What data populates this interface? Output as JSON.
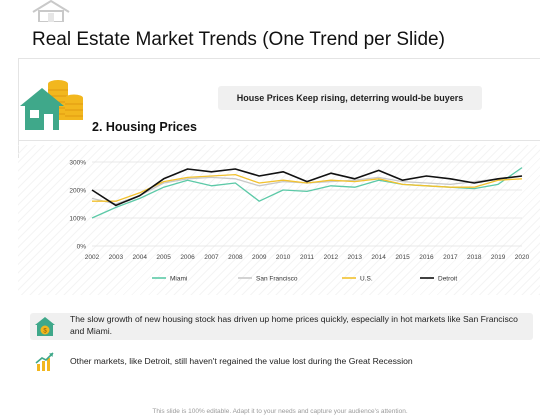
{
  "title": "Real Estate Market Trends (One Trend per Slide)",
  "section_label": "2. Housing Prices",
  "callout": "House Prices Keep rising, deterring would-be buyers",
  "note1": "The slow growth of new housing stock has driven up home prices quickly, especially in hot markets like San Francisco and Miami.",
  "note2": "Other markets, like Detroit, still haven't regained the value lost during the Great Recession",
  "footer": "This slide is 100% editable. Adapt it to your needs and capture your audience's attention.",
  "icons": {
    "top": "house-outline-icon",
    "section": "house-with-coins-icon",
    "note1": "house-coin-icon",
    "note2": "growth-chart-icon"
  },
  "colors": {
    "miami": "#5cc9a7",
    "san_francisco": "#c8c8c8",
    "us": "#f2c12e",
    "detroit": "#111111",
    "house_green": "#3fa88a",
    "coin": "#f2b71e"
  },
  "chart_data": {
    "type": "line",
    "x": [
      2002,
      2003,
      2004,
      2005,
      2006,
      2007,
      2008,
      2009,
      2010,
      2011,
      2012,
      2013,
      2014,
      2015,
      2016,
      2017,
      2018,
      2019,
      2020
    ],
    "x_labels": [
      "2002",
      "2003",
      "2004",
      "2005",
      "2006",
      "2007",
      "2008",
      "2009",
      "2010",
      "2011",
      "2012",
      "2013",
      "2014",
      "2015",
      "2016",
      "2017",
      "2018",
      "2019",
      "2020"
    ],
    "y_ticks": [
      "0%",
      "100%",
      "200%",
      "300%"
    ],
    "ylim": [
      0,
      300
    ],
    "grid": true,
    "legend_position": "bottom",
    "series": [
      {
        "name": "Miami",
        "values": [
          100,
          138,
          170,
          210,
          235,
          215,
          225,
          160,
          200,
          195,
          215,
          210,
          235,
          220,
          215,
          210,
          205,
          220,
          280
        ]
      },
      {
        "name": "San Francisco",
        "values": [
          170,
          150,
          180,
          225,
          240,
          245,
          240,
          215,
          230,
          225,
          230,
          235,
          245,
          230,
          225,
          220,
          230,
          240,
          250
        ]
      },
      {
        "name": "U.S.",
        "values": [
          160,
          160,
          190,
          230,
          245,
          250,
          255,
          225,
          235,
          225,
          235,
          230,
          240,
          220,
          215,
          210,
          210,
          235,
          240
        ]
      },
      {
        "name": "Detroit",
        "values": [
          200,
          145,
          180,
          240,
          275,
          265,
          275,
          250,
          265,
          230,
          260,
          240,
          270,
          235,
          250,
          240,
          225,
          240,
          250
        ]
      }
    ]
  }
}
